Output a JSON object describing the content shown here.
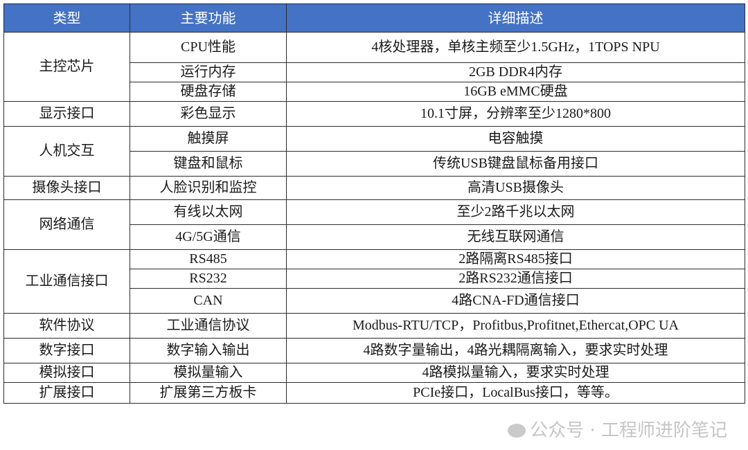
{
  "header": {
    "type": "类型",
    "function": "主要功能",
    "description": "详细描述"
  },
  "header_color": "#4472c4",
  "groups": [
    {
      "type": "主控芯片",
      "items": [
        {
          "function": "CPU性能",
          "description": "4核处理器，单核主频至少1.5GHz，1TOPS NPU"
        },
        {
          "function": "运行内存",
          "description": "2GB DDR4内存"
        },
        {
          "function": "硬盘存储",
          "description": "16GB eMMC硬盘"
        }
      ]
    },
    {
      "type": "显示接口",
      "items": [
        {
          "function": "彩色显示",
          "description": "10.1寸屏，分辨率至少1280*800"
        }
      ]
    },
    {
      "type": "人机交互",
      "items": [
        {
          "function": "触摸屏",
          "description": "电容触摸"
        },
        {
          "function": "键盘和鼠标",
          "description": "传统USB键盘鼠标备用接口"
        }
      ]
    },
    {
      "type": "摄像头接口",
      "items": [
        {
          "function": "人脸识别和监控",
          "description": "高清USB摄像头"
        }
      ]
    },
    {
      "type": "网络通信",
      "items": [
        {
          "function": "有线以太网",
          "description": "至少2路千兆以太网"
        },
        {
          "function": "4G/5G通信",
          "description": "无线互联网通信"
        }
      ]
    },
    {
      "type": "工业通信接口",
      "items": [
        {
          "function": "RS485",
          "description": "2路隔离RS485接口"
        },
        {
          "function": "RS232",
          "description": "2路RS232通信接口"
        },
        {
          "function": "CAN",
          "description": "4路CNA-FD通信接口"
        }
      ]
    },
    {
      "type": "软件协议",
      "items": [
        {
          "function": "工业通信协议",
          "description": "Modbus-RTU/TCP，Profitbus,Profitnet,Ethercat,OPC UA"
        }
      ]
    },
    {
      "type": "数字接口",
      "items": [
        {
          "function": "数字输入输出",
          "description": "4路数字量输出，4路光耦隔离输入，要求实时处理"
        }
      ]
    },
    {
      "type": "模拟接口",
      "items": [
        {
          "function": "模拟量输入",
          "description": "4路模拟量输入，要求实时处理"
        }
      ]
    },
    {
      "type": "扩展接口",
      "items": [
        {
          "function": "扩展第三方板卡",
          "description": "PCIe接口，LocalBus接口，等等。"
        }
      ]
    }
  ],
  "watermark": "公众号 · 工程师进阶笔记"
}
